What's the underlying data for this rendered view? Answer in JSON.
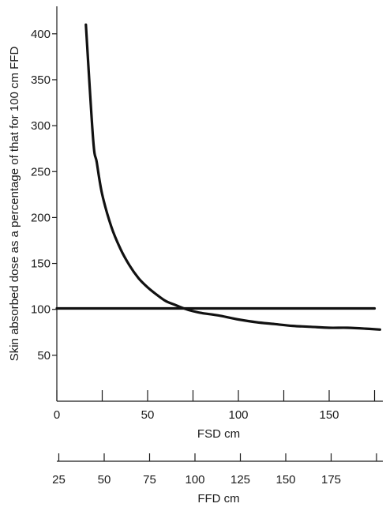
{
  "chart_data": {
    "type": "line",
    "ylabel": "Skin absorbed dose as a percentage of that for 100 cm FFD",
    "xlabel": "FSD cm",
    "x2label": "FFD cm",
    "xlim": [
      0,
      180
    ],
    "ylim": [
      0,
      430
    ],
    "x_ticks": [
      0,
      25,
      50,
      75,
      100,
      125,
      150,
      175
    ],
    "x_tick_labels": [
      "0",
      "50",
      "100",
      "150"
    ],
    "y_ticks": [
      50,
      100,
      150,
      200,
      250,
      300,
      350,
      400
    ],
    "y_tick_labels": [
      "50",
      "100",
      "150",
      "200",
      "250",
      "300",
      "350",
      "400"
    ],
    "x2_ticks": [
      25,
      50,
      75,
      100,
      125,
      150,
      175,
      200
    ],
    "x2_tick_labels": [
      "25",
      "50",
      "75",
      "100",
      "125",
      "150",
      "175"
    ],
    "grid": false,
    "series": [
      {
        "x": [
          16,
          20,
          22,
          25,
          30,
          35,
          40,
          45,
          50,
          55,
          60,
          65,
          70,
          75,
          80,
          90,
          100,
          110,
          120,
          130,
          140,
          150,
          160,
          170,
          178
        ],
        "y": [
          410,
          285,
          260,
          225,
          190,
          166,
          148,
          134,
          124,
          116,
          109,
          105,
          101,
          98,
          96,
          93,
          89,
          86,
          84,
          82,
          81,
          80,
          80,
          79,
          78
        ]
      },
      {
        "x": [
          0,
          175
        ],
        "y": [
          101,
          101
        ]
      }
    ]
  }
}
